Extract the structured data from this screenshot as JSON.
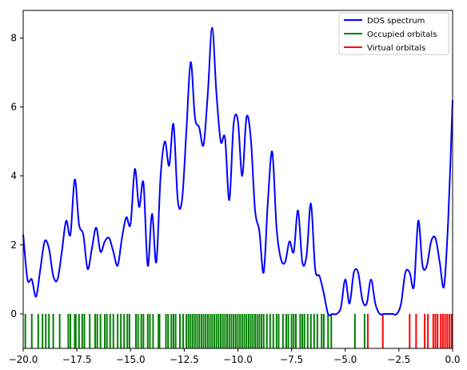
{
  "chart_data": {
    "type": "line",
    "title": "",
    "xlabel": "",
    "ylabel": "",
    "xlim": [
      -20,
      0
    ],
    "ylim": [
      -1,
      8.8
    ],
    "x_ticks": [
      -20,
      -17.5,
      -15,
      -12.5,
      -10,
      -7.5,
      -5,
      -2.5,
      0
    ],
    "x_tick_labels": [
      "−20.0",
      "−17.5",
      "−15.0",
      "−12.5",
      "−10.0",
      "−7.5",
      "−5.0",
      "−2.5",
      "0.0"
    ],
    "y_ticks": [
      0,
      2,
      4,
      6,
      8
    ],
    "y_tick_labels": [
      "0",
      "2",
      "4",
      "6",
      "8"
    ],
    "grid": false,
    "legend_position": "top-right",
    "series": [
      {
        "name": "DOS spectrum",
        "color": "#0000ff",
        "x": [
          -20.0,
          -19.8,
          -19.6,
          -19.4,
          -19.2,
          -19.0,
          -18.8,
          -18.6,
          -18.4,
          -18.2,
          -18.0,
          -17.8,
          -17.6,
          -17.4,
          -17.2,
          -17.0,
          -16.8,
          -16.6,
          -16.4,
          -16.2,
          -16.0,
          -15.8,
          -15.6,
          -15.4,
          -15.2,
          -15.0,
          -14.8,
          -14.6,
          -14.4,
          -14.2,
          -14.0,
          -13.8,
          -13.6,
          -13.4,
          -13.2,
          -13.0,
          -12.8,
          -12.6,
          -12.4,
          -12.2,
          -12.0,
          -11.8,
          -11.6,
          -11.4,
          -11.2,
          -11.0,
          -10.8,
          -10.6,
          -10.4,
          -10.2,
          -10.0,
          -9.8,
          -9.6,
          -9.4,
          -9.2,
          -9.0,
          -8.8,
          -8.6,
          -8.4,
          -8.2,
          -8.0,
          -7.8,
          -7.6,
          -7.4,
          -7.2,
          -7.0,
          -6.8,
          -6.6,
          -6.4,
          -6.2,
          -6.0,
          -5.8,
          -5.6,
          -5.4,
          -5.2,
          -5.0,
          -4.8,
          -4.6,
          -4.4,
          -4.2,
          -4.0,
          -3.8,
          -3.6,
          -3.4,
          -3.2,
          -3.0,
          -2.8,
          -2.6,
          -2.4,
          -2.2,
          -2.0,
          -1.8,
          -1.6,
          -1.4,
          -1.2,
          -1.0,
          -0.8,
          -0.6,
          -0.4,
          -0.2,
          0.0
        ],
        "y": [
          2.3,
          1.0,
          1.0,
          0.5,
          1.3,
          2.1,
          1.9,
          1.1,
          1.0,
          1.8,
          2.7,
          2.3,
          3.9,
          2.6,
          2.3,
          1.3,
          1.9,
          2.5,
          1.8,
          2.1,
          2.2,
          1.8,
          1.4,
          2.2,
          2.8,
          2.6,
          4.2,
          3.1,
          3.8,
          1.4,
          2.9,
          1.5,
          4.0,
          5.0,
          4.3,
          5.5,
          3.3,
          3.3,
          5.3,
          7.3,
          5.7,
          5.4,
          4.9,
          6.4,
          8.3,
          6.4,
          5.0,
          5.1,
          3.3,
          5.5,
          5.6,
          4.0,
          5.7,
          5.1,
          3.0,
          2.4,
          1.2,
          3.3,
          4.7,
          2.5,
          1.6,
          1.5,
          2.1,
          1.8,
          3.0,
          1.5,
          1.7,
          3.2,
          1.3,
          1.1,
          0.6,
          0.0,
          0.0,
          0.0,
          0.2,
          1.0,
          0.3,
          1.2,
          1.2,
          0.4,
          0.3,
          1.0,
          0.3,
          0.0,
          0.0,
          0.0,
          0.0,
          0.0,
          0.3,
          1.2,
          1.2,
          0.8,
          2.7,
          1.4,
          1.4,
          2.1,
          2.2,
          1.5,
          0.8,
          2.8,
          6.2
        ]
      },
      {
        "name": "Occupied orbitals",
        "color": "#008000",
        "x": [
          -19.9,
          -19.6,
          -19.3,
          -19.1,
          -18.95,
          -18.8,
          -18.6,
          -18.3,
          -17.9,
          -17.8,
          -17.6,
          -17.55,
          -17.4,
          -17.25,
          -17.15,
          -16.9,
          -16.65,
          -16.55,
          -16.4,
          -16.2,
          -16.1,
          -15.95,
          -15.8,
          -15.6,
          -15.45,
          -15.3,
          -15.15,
          -15.05,
          -14.75,
          -14.65,
          -14.5,
          -14.4,
          -14.2,
          -14.1,
          -13.95,
          -13.7,
          -13.65,
          -13.35,
          -13.25,
          -13.1,
          -13.0,
          -12.9,
          -12.7,
          -12.55,
          -12.4,
          -12.3,
          -12.2,
          -12.1,
          -12.0,
          -11.9,
          -11.8,
          -11.7,
          -11.6,
          -11.5,
          -11.4,
          -11.3,
          -11.2,
          -11.1,
          -11.0,
          -10.9,
          -10.8,
          -10.7,
          -10.6,
          -10.5,
          -10.4,
          -10.3,
          -10.2,
          -10.1,
          -10.0,
          -9.9,
          -9.8,
          -9.7,
          -9.6,
          -9.5,
          -9.4,
          -9.3,
          -9.2,
          -9.1,
          -9.0,
          -8.9,
          -8.8,
          -8.65,
          -8.5,
          -8.35,
          -8.2,
          -8.1,
          -7.9,
          -7.75,
          -7.65,
          -7.5,
          -7.4,
          -7.3,
          -7.1,
          -7.0,
          -6.9,
          -6.75,
          -6.6,
          -6.45,
          -6.3,
          -6.1,
          -6.0,
          -5.8,
          -5.65,
          -4.55,
          -4.1
        ],
        "y": [
          0,
          0,
          0,
          0,
          0,
          0,
          0,
          0,
          0,
          0,
          0,
          0,
          0,
          0,
          0,
          0,
          0,
          0,
          0,
          0,
          0,
          0,
          0,
          0,
          0,
          0,
          0,
          0,
          0,
          0,
          0,
          0,
          0,
          0,
          0,
          0,
          0,
          0,
          0,
          0,
          0,
          0,
          0,
          0,
          0,
          0,
          0,
          0,
          0,
          0,
          0,
          0,
          0,
          0,
          0,
          0,
          0,
          0,
          0,
          0,
          0,
          0,
          0,
          0,
          0,
          0,
          0,
          0,
          0,
          0,
          0,
          0,
          0,
          0,
          0,
          0,
          0,
          0,
          0,
          0,
          0,
          0,
          0,
          0,
          0,
          0,
          0,
          0,
          0,
          0,
          0,
          0,
          0,
          0,
          0,
          0,
          0,
          0,
          0,
          0,
          0,
          0,
          0,
          0,
          0
        ]
      },
      {
        "name": "Virtual orbitals",
        "color": "#ff0000",
        "x": [
          -3.95,
          -3.25,
          -2.0,
          -1.7,
          -1.3,
          -1.15,
          -0.9,
          -0.8,
          -0.7,
          -0.55,
          -0.45,
          -0.35,
          -0.25,
          -0.15,
          -0.05
        ],
        "y": [
          0,
          0,
          0,
          0,
          0,
          0,
          0,
          0,
          0,
          0,
          0,
          0,
          0,
          0,
          0
        ]
      }
    ]
  }
}
